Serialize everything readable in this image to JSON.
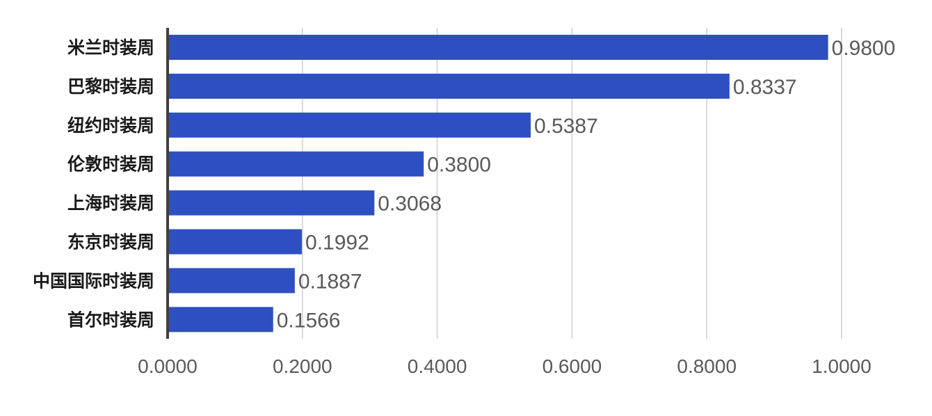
{
  "chart_data": {
    "type": "bar",
    "orientation": "horizontal",
    "categories": [
      "米兰时装周",
      "巴黎时装周",
      "纽约时装周",
      "伦敦时装周",
      "上海时装周",
      "东京时装周",
      "中国国际时装周",
      "首尔时装周"
    ],
    "values": [
      0.98,
      0.8337,
      0.5387,
      0.38,
      0.3068,
      0.1992,
      0.1887,
      0.1566
    ],
    "value_labels": [
      "0.9800",
      "0.8337",
      "0.5387",
      "0.3800",
      "0.3068",
      "0.1992",
      "0.1887",
      "0.1566"
    ],
    "x_ticks": [
      "0.0000",
      "0.2000",
      "0.4000",
      "0.6000",
      "0.8000",
      "1.0000"
    ],
    "xlim": [
      0,
      1.0
    ],
    "grid": "vertical",
    "title": "",
    "xlabel": "",
    "ylabel": "",
    "bar_color": "#2e4fc2",
    "grid_color": "#d9d9d9"
  }
}
